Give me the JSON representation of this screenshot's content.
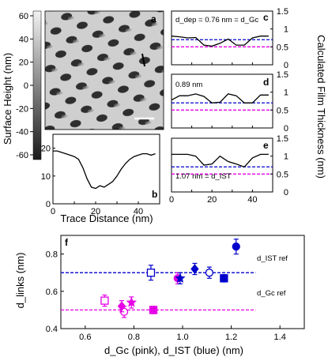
{
  "colors": {
    "pink": "#e600e6",
    "blue": "#0000cc",
    "black": "#000000"
  },
  "panel_letters": {
    "a": "a",
    "b": "b",
    "c": "c",
    "d": "d",
    "e": "e",
    "f": "f"
  },
  "labels": {
    "surface_height": "Surface Height (nm)",
    "calc_thickness": "Calculated Film Thickness (nm)",
    "trace_distance": "Trace Distance (nm)",
    "f_xlabel": "d_Gc (pink), d_IST (blue) (nm)",
    "f_ylabel": "d_links (nm)",
    "c_annotation": "d_dep = 0.76 nm = d_Gc",
    "d_annotation": "0.89 nm",
    "e_annotation": "1.07 nm = d_IST",
    "ref_ist": "d_IST ref",
    "ref_gc": "d_Gc ref"
  },
  "colorbar_ticks": [
    "60",
    "40",
    "20",
    "0",
    "-20",
    "-40",
    "-60"
  ],
  "chart_data": [
    {
      "panel": "b",
      "type": "line",
      "x": [
        0,
        2,
        4,
        6,
        8,
        10,
        12,
        14,
        16,
        18,
        20,
        22,
        24,
        26,
        28,
        30,
        32,
        34,
        36,
        38,
        40,
        42,
        44,
        46,
        48
      ],
      "y": [
        19,
        19,
        18.5,
        18,
        17.5,
        17,
        16,
        13,
        9,
        6,
        5.5,
        6.5,
        6,
        7,
        8,
        10,
        12.5,
        14.5,
        16,
        17,
        17.5,
        18,
        18,
        17.5,
        18
      ],
      "xlim": [
        0,
        50
      ],
      "ylim": [
        0,
        25
      ],
      "xticks": [
        0,
        20,
        40
      ],
      "yticks": [
        0,
        10,
        20
      ]
    },
    {
      "panel": "c",
      "type": "line",
      "x": [
        0,
        4,
        8,
        12,
        16,
        20,
        24,
        28,
        32,
        36,
        40,
        44,
        48
      ],
      "y": [
        0.8,
        0.78,
        0.75,
        0.76,
        0.55,
        0.52,
        0.6,
        0.72,
        0.55,
        0.55,
        0.75,
        0.8,
        0.8
      ],
      "blue_ref": 0.7,
      "pink_ref": 0.5,
      "xlim": [
        0,
        50
      ],
      "ylim": [
        0,
        1.5
      ],
      "yticks": [
        0,
        0.5,
        1,
        1.5
      ]
    },
    {
      "panel": "d",
      "type": "line",
      "x": [
        0,
        4,
        8,
        12,
        16,
        20,
        24,
        28,
        32,
        36,
        40,
        44,
        48
      ],
      "y": [
        0.78,
        0.9,
        0.9,
        0.95,
        0.88,
        0.7,
        0.72,
        0.95,
        0.9,
        0.7,
        0.7,
        0.92,
        0.92
      ],
      "blue_ref": 0.7,
      "pink_ref": 0.5,
      "xlim": [
        0,
        50
      ],
      "ylim": [
        0,
        1.5
      ],
      "yticks": [
        0,
        0.5,
        1,
        1.5
      ]
    },
    {
      "panel": "e",
      "type": "line",
      "x": [
        0,
        4,
        8,
        12,
        16,
        20,
        24,
        28,
        32,
        36,
        40,
        44,
        48
      ],
      "y": [
        1.05,
        1.05,
        1.05,
        1.0,
        0.75,
        0.78,
        1.0,
        0.85,
        0.78,
        0.7,
        0.95,
        1.05,
        1.05
      ],
      "blue_ref": 0.7,
      "pink_ref": 0.5,
      "xlim": [
        0,
        50
      ],
      "ylim": [
        0,
        1.5
      ],
      "xticks": [
        0,
        20,
        40
      ],
      "yticks": [
        0,
        0.5,
        1,
        1.5
      ]
    },
    {
      "panel": "f",
      "type": "scatter",
      "xlim": [
        0.5,
        1.5
      ],
      "ylim": [
        0.4,
        0.9
      ],
      "xticks": [
        0.6,
        0.8,
        1.0,
        1.2,
        1.4
      ],
      "yticks": [
        0.4,
        0.6,
        0.8
      ],
      "ref_ist": 0.7,
      "ref_gc": 0.5,
      "series": [
        {
          "color": "pink",
          "points": [
            {
              "x": 0.68,
              "y": 0.55,
              "err": 0.03,
              "marker": "square-open"
            },
            {
              "x": 0.76,
              "y": 0.49,
              "err": 0.03,
              "marker": "circle-open"
            },
            {
              "x": 0.75,
              "y": 0.52,
              "err": 0.03,
              "marker": "diamond"
            },
            {
              "x": 0.79,
              "y": 0.54,
              "err": 0.03,
              "marker": "star"
            },
            {
              "x": 0.88,
              "y": 0.5,
              "err": 0.02,
              "marker": "square"
            },
            {
              "x": 0.98,
              "y": 0.67,
              "err": 0.03,
              "marker": "circle"
            }
          ]
        },
        {
          "color": "blue",
          "points": [
            {
              "x": 0.87,
              "y": 0.7,
              "err": 0.04,
              "marker": "square-open"
            },
            {
              "x": 0.99,
              "y": 0.67,
              "err": 0.03,
              "marker": "star"
            },
            {
              "x": 1.05,
              "y": 0.72,
              "err": 0.03,
              "marker": "diamond"
            },
            {
              "x": 1.11,
              "y": 0.7,
              "err": 0.03,
              "marker": "circle-open"
            },
            {
              "x": 1.17,
              "y": 0.67,
              "err": 0.02,
              "marker": "square"
            },
            {
              "x": 1.22,
              "y": 0.84,
              "err": 0.04,
              "marker": "circle"
            }
          ]
        }
      ]
    }
  ]
}
